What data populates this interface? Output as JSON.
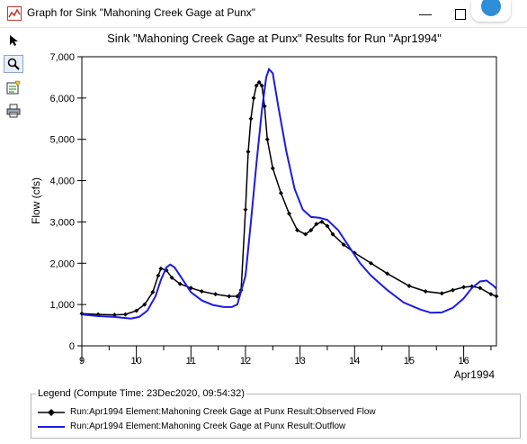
{
  "window": {
    "title": "Graph for Sink \"Mahoning Creek Gage at Punx\"",
    "minimize_glyph": "—",
    "icons": {
      "app": "graph-window-icon",
      "maximize": "maximize-icon",
      "assistant": "assistant-bubble-icon"
    }
  },
  "toolbar": {
    "tools": [
      {
        "name": "pointer-icon",
        "selected": false
      },
      {
        "name": "zoom-icon",
        "selected": true
      },
      {
        "name": "properties-icon",
        "selected": false
      },
      {
        "name": "print-icon",
        "selected": false
      }
    ]
  },
  "legend": {
    "title": "Legend (Compute Time: 23Dec2020, 09:54:32)",
    "items": [
      {
        "label": "Run:Apr1994 Element:Mahoning Creek Gage at Punx Result:Observed Flow",
        "color": "#000000",
        "marker": "diamond"
      },
      {
        "label": "Run:Apr1994 Element:Mahoning Creek Gage at Punx Result:Outflow",
        "color": "#1c1ce0",
        "marker": "none"
      }
    ]
  },
  "chart_data": {
    "type": "line",
    "title": "Sink \"Mahoning Creek Gage at Punx\" Results for Run \"Apr1994\"",
    "xlabel": "Apr1994",
    "ylabel": "Flow (cfs)",
    "xlim": [
      9,
      16.6
    ],
    "ylim": [
      0,
      7000
    ],
    "x_ticks": [
      9,
      10,
      11,
      12,
      13,
      14,
      15,
      16
    ],
    "x_tick_labels": [
      "9",
      "10",
      "11",
      "12",
      "13",
      "14",
      "15",
      "16"
    ],
    "y_ticks": [
      0,
      1000,
      2000,
      3000,
      4000,
      5000,
      6000,
      7000
    ],
    "y_tick_labels": [
      "0",
      "1,000",
      "2,000",
      "3,000",
      "4,000",
      "5,000",
      "6,000",
      "7,000"
    ],
    "grid": false,
    "series": [
      {
        "name": "Run:Apr1994 Element:Mahoning Creek Gage at Punx Result:Observed Flow",
        "color": "#000000",
        "marker": "diamond",
        "points": [
          [
            9.0,
            780
          ],
          [
            9.3,
            760
          ],
          [
            9.6,
            750
          ],
          [
            9.8,
            760
          ],
          [
            10.0,
            850
          ],
          [
            10.15,
            1000
          ],
          [
            10.3,
            1300
          ],
          [
            10.4,
            1700
          ],
          [
            10.45,
            1870
          ],
          [
            10.55,
            1830
          ],
          [
            10.65,
            1650
          ],
          [
            10.8,
            1500
          ],
          [
            11.0,
            1400
          ],
          [
            11.2,
            1320
          ],
          [
            11.45,
            1250
          ],
          [
            11.7,
            1200
          ],
          [
            11.85,
            1200
          ],
          [
            11.92,
            1350
          ],
          [
            12.0,
            3300
          ],
          [
            12.05,
            4700
          ],
          [
            12.1,
            5500
          ],
          [
            12.15,
            6000
          ],
          [
            12.2,
            6300
          ],
          [
            12.25,
            6380
          ],
          [
            12.3,
            6300
          ],
          [
            12.35,
            5800
          ],
          [
            12.4,
            5000
          ],
          [
            12.5,
            4300
          ],
          [
            12.65,
            3700
          ],
          [
            12.8,
            3200
          ],
          [
            12.95,
            2800
          ],
          [
            13.1,
            2700
          ],
          [
            13.2,
            2800
          ],
          [
            13.3,
            2950
          ],
          [
            13.4,
            3000
          ],
          [
            13.5,
            2900
          ],
          [
            13.6,
            2700
          ],
          [
            13.8,
            2450
          ],
          [
            14.0,
            2250
          ],
          [
            14.3,
            2000
          ],
          [
            14.6,
            1750
          ],
          [
            15.0,
            1450
          ],
          [
            15.3,
            1320
          ],
          [
            15.6,
            1270
          ],
          [
            15.8,
            1350
          ],
          [
            16.0,
            1420
          ],
          [
            16.15,
            1440
          ],
          [
            16.3,
            1400
          ],
          [
            16.5,
            1250
          ],
          [
            16.6,
            1200
          ]
        ]
      },
      {
        "name": "Run:Apr1994 Element:Mahoning Creek Gage at Punx Result:Outflow",
        "color": "#1c1ce0",
        "marker": "none",
        "points": [
          [
            9.0,
            760
          ],
          [
            9.3,
            720
          ],
          [
            9.6,
            700
          ],
          [
            9.9,
            660
          ],
          [
            10.05,
            700
          ],
          [
            10.2,
            850
          ],
          [
            10.35,
            1200
          ],
          [
            10.45,
            1600
          ],
          [
            10.55,
            1900
          ],
          [
            10.62,
            1970
          ],
          [
            10.7,
            1900
          ],
          [
            10.85,
            1600
          ],
          [
            11.0,
            1300
          ],
          [
            11.2,
            1100
          ],
          [
            11.4,
            990
          ],
          [
            11.6,
            940
          ],
          [
            11.75,
            940
          ],
          [
            11.85,
            1000
          ],
          [
            12.0,
            1700
          ],
          [
            12.1,
            3000
          ],
          [
            12.2,
            4400
          ],
          [
            12.3,
            5700
          ],
          [
            12.38,
            6500
          ],
          [
            12.43,
            6700
          ],
          [
            12.5,
            6600
          ],
          [
            12.6,
            5800
          ],
          [
            12.75,
            4700
          ],
          [
            12.9,
            3800
          ],
          [
            13.05,
            3300
          ],
          [
            13.2,
            3120
          ],
          [
            13.35,
            3100
          ],
          [
            13.5,
            3050
          ],
          [
            13.7,
            2800
          ],
          [
            13.9,
            2400
          ],
          [
            14.1,
            2000
          ],
          [
            14.3,
            1700
          ],
          [
            14.6,
            1350
          ],
          [
            14.9,
            1050
          ],
          [
            15.2,
            880
          ],
          [
            15.4,
            800
          ],
          [
            15.6,
            810
          ],
          [
            15.8,
            920
          ],
          [
            16.0,
            1150
          ],
          [
            16.15,
            1400
          ],
          [
            16.3,
            1560
          ],
          [
            16.42,
            1580
          ],
          [
            16.55,
            1450
          ],
          [
            16.6,
            1380
          ]
        ]
      }
    ]
  }
}
